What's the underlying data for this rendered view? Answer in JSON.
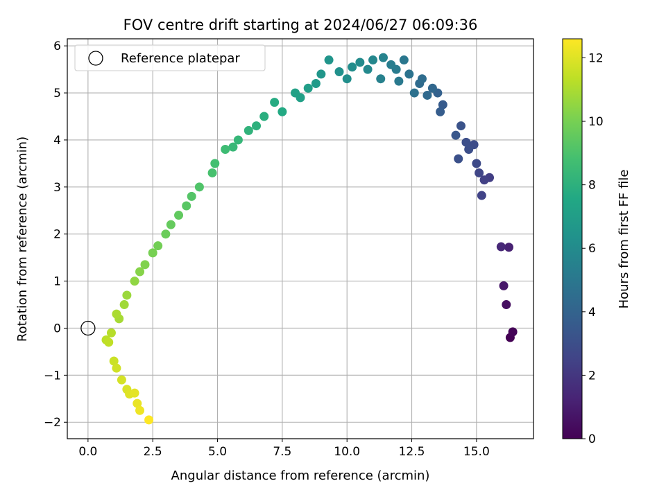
{
  "chart_data": {
    "type": "scatter",
    "title": "FOV centre drift starting at 2024/06/27 06:09:36",
    "xlabel": "Angular distance from reference (arcmin)",
    "ylabel": "Rotation from reference (arcmin)",
    "xlim": [
      -0.8,
      17.2
    ],
    "ylim": [
      -2.35,
      6.15
    ],
    "xticks": [
      "0.0",
      "2.5",
      "5.0",
      "7.5",
      "10.0",
      "12.5",
      "15.0"
    ],
    "yticks": [
      "−2",
      "−1",
      "0",
      "1",
      "2",
      "3",
      "4",
      "5",
      "6"
    ],
    "grid": true,
    "legend": {
      "position": "upper-left",
      "entries": [
        "Reference platepar"
      ]
    },
    "reference_point": {
      "x": 0.0,
      "y": 0.0
    },
    "colorbar": {
      "label": "Hours from first FF file",
      "range": [
        0,
        12.6
      ],
      "ticks": [
        "0",
        "2",
        "4",
        "6",
        "8",
        "10",
        "12"
      ],
      "colormap": "viridis"
    },
    "anchor_points": [
      {
        "x": 16.3,
        "y": -0.2,
        "t": 0.0
      },
      {
        "x": 16.4,
        "y": -0.08,
        "t": 0.1
      },
      {
        "x": 16.15,
        "y": 0.5,
        "t": 0.5
      },
      {
        "x": 16.05,
        "y": 0.9,
        "t": 0.8
      },
      {
        "x": 16.25,
        "y": 1.72,
        "t": 1.2
      },
      {
        "x": 15.95,
        "y": 1.73,
        "t": 1.4
      },
      {
        "x": 15.5,
        "y": 3.2,
        "t": 2.3
      },
      {
        "x": 15.2,
        "y": 2.82,
        "t": 2.5
      },
      {
        "x": 15.0,
        "y": 3.5,
        "t": 2.8
      },
      {
        "x": 14.7,
        "y": 3.8,
        "t": 3.0
      },
      {
        "x": 14.4,
        "y": 4.3,
        "t": 3.2
      },
      {
        "x": 14.2,
        "y": 4.1,
        "t": 3.4
      },
      {
        "x": 13.6,
        "y": 4.6,
        "t": 3.7
      },
      {
        "x": 13.3,
        "y": 5.1,
        "t": 4.2
      },
      {
        "x": 12.9,
        "y": 5.3,
        "t": 4.5
      },
      {
        "x": 12.6,
        "y": 5.0,
        "t": 4.7
      },
      {
        "x": 12.2,
        "y": 5.7,
        "t": 5.0
      },
      {
        "x": 11.9,
        "y": 5.5,
        "t": 5.2
      },
      {
        "x": 11.3,
        "y": 5.3,
        "t": 5.5
      },
      {
        "x": 11.0,
        "y": 5.7,
        "t": 5.8
      },
      {
        "x": 10.5,
        "y": 5.65,
        "t": 6.0
      },
      {
        "x": 10.0,
        "y": 5.3,
        "t": 6.2
      },
      {
        "x": 9.3,
        "y": 5.7,
        "t": 6.5
      },
      {
        "x": 8.8,
        "y": 5.2,
        "t": 6.8
      },
      {
        "x": 8.0,
        "y": 5.0,
        "t": 7.2
      },
      {
        "x": 7.5,
        "y": 4.6,
        "t": 7.6
      },
      {
        "x": 6.5,
        "y": 4.3,
        "t": 8.0
      },
      {
        "x": 5.8,
        "y": 4.0,
        "t": 8.3
      },
      {
        "x": 5.3,
        "y": 3.8,
        "t": 8.6
      },
      {
        "x": 4.8,
        "y": 3.3,
        "t": 8.9
      },
      {
        "x": 4.0,
        "y": 2.8,
        "t": 9.2
      },
      {
        "x": 3.5,
        "y": 2.4,
        "t": 9.5
      },
      {
        "x": 3.0,
        "y": 2.0,
        "t": 9.7
      },
      {
        "x": 2.5,
        "y": 1.6,
        "t": 10.0
      },
      {
        "x": 2.0,
        "y": 1.2,
        "t": 10.3
      },
      {
        "x": 1.5,
        "y": 0.7,
        "t": 10.7
      },
      {
        "x": 1.1,
        "y": 0.3,
        "t": 11.0
      },
      {
        "x": 0.9,
        "y": -0.1,
        "t": 11.2
      },
      {
        "x": 0.8,
        "y": -0.3,
        "t": 11.4
      },
      {
        "x": 1.0,
        "y": -0.7,
        "t": 11.6
      },
      {
        "x": 1.3,
        "y": -1.1,
        "t": 11.8
      },
      {
        "x": 1.6,
        "y": -1.4,
        "t": 12.0
      },
      {
        "x": 1.9,
        "y": -1.6,
        "t": 12.2
      },
      {
        "x": 2.0,
        "y": -1.75,
        "t": 12.3
      },
      {
        "x": 2.35,
        "y": -1.95,
        "t": 12.6
      }
    ],
    "extra_points": [
      {
        "x": 15.3,
        "y": 3.15,
        "t": 2.4
      },
      {
        "x": 15.1,
        "y": 3.3,
        "t": 2.6
      },
      {
        "x": 14.9,
        "y": 3.9,
        "t": 2.9
      },
      {
        "x": 14.6,
        "y": 3.95,
        "t": 3.0
      },
      {
        "x": 14.3,
        "y": 3.6,
        "t": 3.1
      },
      {
        "x": 13.7,
        "y": 4.75,
        "t": 3.6
      },
      {
        "x": 13.5,
        "y": 5.0,
        "t": 3.9
      },
      {
        "x": 13.1,
        "y": 4.95,
        "t": 4.3
      },
      {
        "x": 12.8,
        "y": 5.2,
        "t": 4.4
      },
      {
        "x": 12.4,
        "y": 5.4,
        "t": 4.8
      },
      {
        "x": 12.0,
        "y": 5.25,
        "t": 5.1
      },
      {
        "x": 11.7,
        "y": 5.6,
        "t": 5.3
      },
      {
        "x": 11.4,
        "y": 5.75,
        "t": 5.6
      },
      {
        "x": 10.8,
        "y": 5.5,
        "t": 5.9
      },
      {
        "x": 10.2,
        "y": 5.55,
        "t": 6.1
      },
      {
        "x": 9.7,
        "y": 5.45,
        "t": 6.3
      },
      {
        "x": 9.0,
        "y": 5.4,
        "t": 6.6
      },
      {
        "x": 8.5,
        "y": 5.1,
        "t": 7.0
      },
      {
        "x": 8.2,
        "y": 4.9,
        "t": 7.1
      },
      {
        "x": 7.2,
        "y": 4.8,
        "t": 7.7
      },
      {
        "x": 6.8,
        "y": 4.5,
        "t": 7.9
      },
      {
        "x": 6.2,
        "y": 4.2,
        "t": 8.1
      },
      {
        "x": 5.6,
        "y": 3.85,
        "t": 8.4
      },
      {
        "x": 4.9,
        "y": 3.5,
        "t": 8.8
      },
      {
        "x": 4.3,
        "y": 3.0,
        "t": 9.1
      },
      {
        "x": 3.8,
        "y": 2.6,
        "t": 9.3
      },
      {
        "x": 3.2,
        "y": 2.2,
        "t": 9.6
      },
      {
        "x": 2.7,
        "y": 1.75,
        "t": 9.9
      },
      {
        "x": 2.2,
        "y": 1.35,
        "t": 10.2
      },
      {
        "x": 1.8,
        "y": 1.0,
        "t": 10.5
      },
      {
        "x": 1.4,
        "y": 0.5,
        "t": 10.8
      },
      {
        "x": 1.2,
        "y": 0.2,
        "t": 10.9
      },
      {
        "x": 0.7,
        "y": -0.25,
        "t": 11.3
      },
      {
        "x": 1.1,
        "y": -0.85,
        "t": 11.7
      },
      {
        "x": 1.5,
        "y": -1.3,
        "t": 11.9
      },
      {
        "x": 1.8,
        "y": -1.38,
        "t": 12.1
      }
    ]
  }
}
